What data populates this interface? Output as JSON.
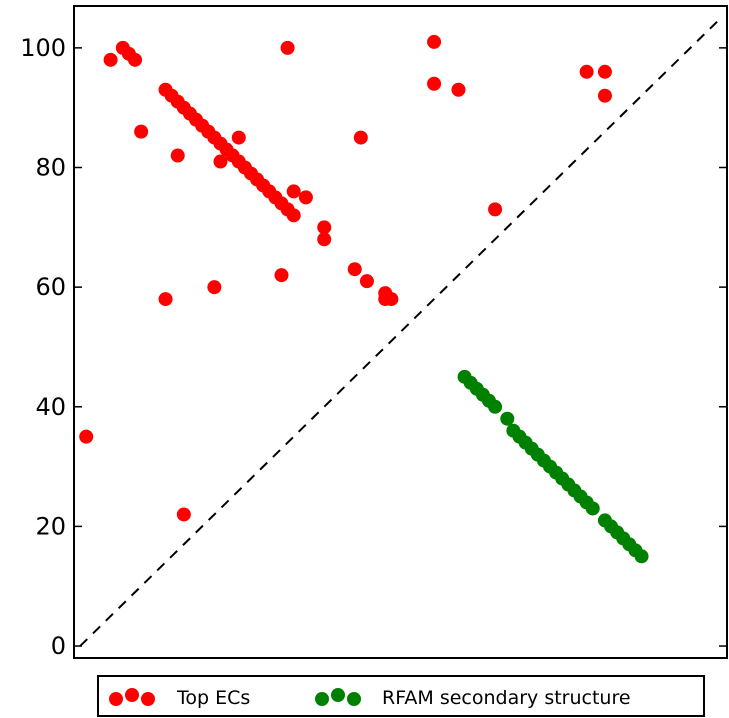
{
  "chart_data": {
    "type": "scatter",
    "title": "",
    "xlabel": "",
    "ylabel": "",
    "xlim": [
      -1,
      106
    ],
    "ylim": [
      -2,
      107
    ],
    "grid": false,
    "show_x_ticks": false,
    "y_ticks": [
      "0",
      "20",
      "40",
      "60",
      "80",
      "100"
    ],
    "diagonal": {
      "style": "dashed",
      "color": "#000000",
      "from": [
        0,
        0
      ],
      "to": [
        105,
        105
      ]
    },
    "legend": {
      "placement": "bottom"
    },
    "series": [
      {
        "name": "Top ECs",
        "color": "#ff0000",
        "points": [
          [
            1,
            35
          ],
          [
            5,
            98
          ],
          [
            7,
            100
          ],
          [
            8,
            99
          ],
          [
            9,
            98
          ],
          [
            10,
            86
          ],
          [
            14,
            93
          ],
          [
            15,
            92
          ],
          [
            16,
            91
          ],
          [
            17,
            90
          ],
          [
            18,
            89
          ],
          [
            19,
            88
          ],
          [
            20,
            87
          ],
          [
            21,
            86
          ],
          [
            22,
            85
          ],
          [
            23,
            84
          ],
          [
            24,
            83
          ],
          [
            25,
            82
          ],
          [
            26,
            81
          ],
          [
            27,
            80
          ],
          [
            28,
            79
          ],
          [
            29,
            78
          ],
          [
            30,
            77
          ],
          [
            31,
            76
          ],
          [
            32,
            75
          ],
          [
            33,
            74
          ],
          [
            34,
            73
          ],
          [
            35,
            72
          ],
          [
            14,
            58
          ],
          [
            16,
            82
          ],
          [
            17,
            22
          ],
          [
            22,
            60
          ],
          [
            23,
            81
          ],
          [
            26,
            85
          ],
          [
            33,
            62
          ],
          [
            34,
            100
          ],
          [
            35,
            76
          ],
          [
            37,
            75
          ],
          [
            40,
            70
          ],
          [
            40,
            68
          ],
          [
            45,
            63
          ],
          [
            46,
            85
          ],
          [
            47,
            61
          ],
          [
            50,
            59
          ],
          [
            50,
            58
          ],
          [
            51,
            58
          ],
          [
            58,
            101
          ],
          [
            58,
            94
          ],
          [
            62,
            93
          ],
          [
            68,
            73
          ],
          [
            83,
            96
          ],
          [
            86,
            96
          ],
          [
            86,
            92
          ]
        ]
      },
      {
        "name": "RFAM secondary structure",
        "color": "#008000",
        "points": [
          [
            63,
            45
          ],
          [
            64,
            44
          ],
          [
            65,
            43
          ],
          [
            66,
            42
          ],
          [
            67,
            41
          ],
          [
            68,
            40
          ],
          [
            70,
            38
          ],
          [
            71,
            36
          ],
          [
            72,
            35
          ],
          [
            73,
            34
          ],
          [
            74,
            33
          ],
          [
            75,
            32
          ],
          [
            76,
            31
          ],
          [
            77,
            30
          ],
          [
            78,
            29
          ],
          [
            79,
            28
          ],
          [
            80,
            27
          ],
          [
            81,
            26
          ],
          [
            82,
            25
          ],
          [
            83,
            24
          ],
          [
            84,
            23
          ],
          [
            86,
            21
          ],
          [
            87,
            20
          ],
          [
            88,
            19
          ],
          [
            89,
            18
          ],
          [
            90,
            17
          ],
          [
            91,
            16
          ],
          [
            92,
            15
          ]
        ]
      }
    ]
  }
}
